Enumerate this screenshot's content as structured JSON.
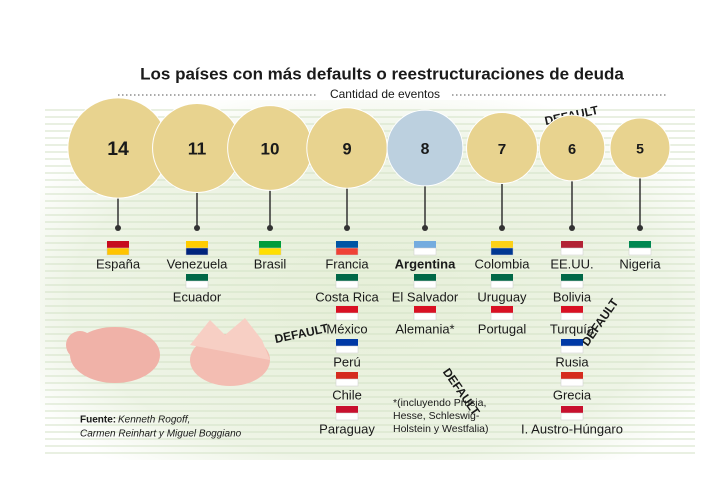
{
  "chart_data": {
    "type": "bubble",
    "title": "Los países con más defaults o reestructuraciones de deuda",
    "subtitle": "Cantidad de eventos",
    "values": [
      14,
      11,
      10,
      9,
      8,
      7,
      6,
      5
    ],
    "colors": [
      "#e8d38f",
      "#e8d38f",
      "#e8d38f",
      "#e8d38f",
      "#bcd0df",
      "#e8d38f",
      "#e8d38f",
      "#e8d38f"
    ],
    "emphasis": 4,
    "groups": [
      [
        "España"
      ],
      [
        "Venezuela",
        "Ecuador"
      ],
      [
        "Brasil"
      ],
      [
        "Francia",
        "Costa Rica",
        "México",
        "Perú",
        "Chile",
        "Paraguay"
      ],
      [
        "Argentina",
        "El Salvador",
        "Alemania*"
      ],
      [
        "Colombia",
        "Uruguay",
        "Portugal"
      ],
      [
        "EE.UU.",
        "Bolivia",
        "Turquía",
        "Rusia",
        "Grecia",
        "I. Austro-Húngaro"
      ],
      [
        "Nigeria"
      ]
    ],
    "note": [
      "*(incluyendo Prusia,",
      "Hesse, Schleswig-",
      "Holstein y Westfalia)"
    ],
    "source_label": "Fuente:",
    "source": [
      "Kenneth Rogoff,",
      "Carmen Reinhart y Miguel Boggiano"
    ],
    "stamp": "DEFAULT"
  }
}
